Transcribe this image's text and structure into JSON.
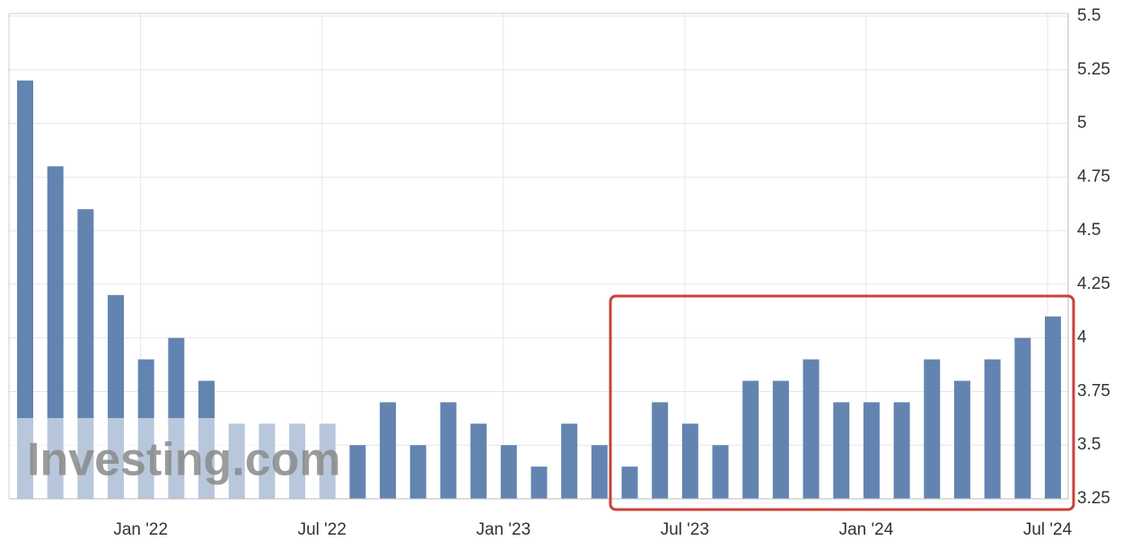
{
  "chart_data": {
    "type": "bar",
    "categories": [
      null,
      null,
      null,
      null,
      "Jan '22",
      null,
      null,
      null,
      null,
      null,
      "Jul '22",
      null,
      null,
      null,
      null,
      null,
      "Jan '23",
      null,
      null,
      null,
      null,
      null,
      "Jul '23",
      null,
      null,
      null,
      null,
      null,
      "Jan '24",
      null,
      null,
      null,
      null,
      null,
      "Jul '24"
    ],
    "values": [
      5.2,
      4.8,
      4.6,
      4.2,
      3.9,
      4.0,
      3.8,
      3.6,
      3.6,
      3.6,
      3.6,
      3.5,
      3.7,
      3.5,
      3.7,
      3.6,
      3.5,
      3.4,
      3.6,
      3.5,
      3.4,
      3.7,
      3.6,
      3.5,
      3.8,
      3.8,
      3.9,
      3.7,
      3.7,
      3.7,
      3.9,
      3.8,
      3.9,
      4.0,
      4.1
    ],
    "color": "#6384b0",
    "ylim": [
      3.25,
      5.5
    ],
    "yticks": [
      3.25,
      3.5,
      3.75,
      4,
      4.25,
      4.5,
      4.75,
      5,
      5.25,
      5.5
    ],
    "grid": true,
    "watermark": "Investing.com"
  }
}
